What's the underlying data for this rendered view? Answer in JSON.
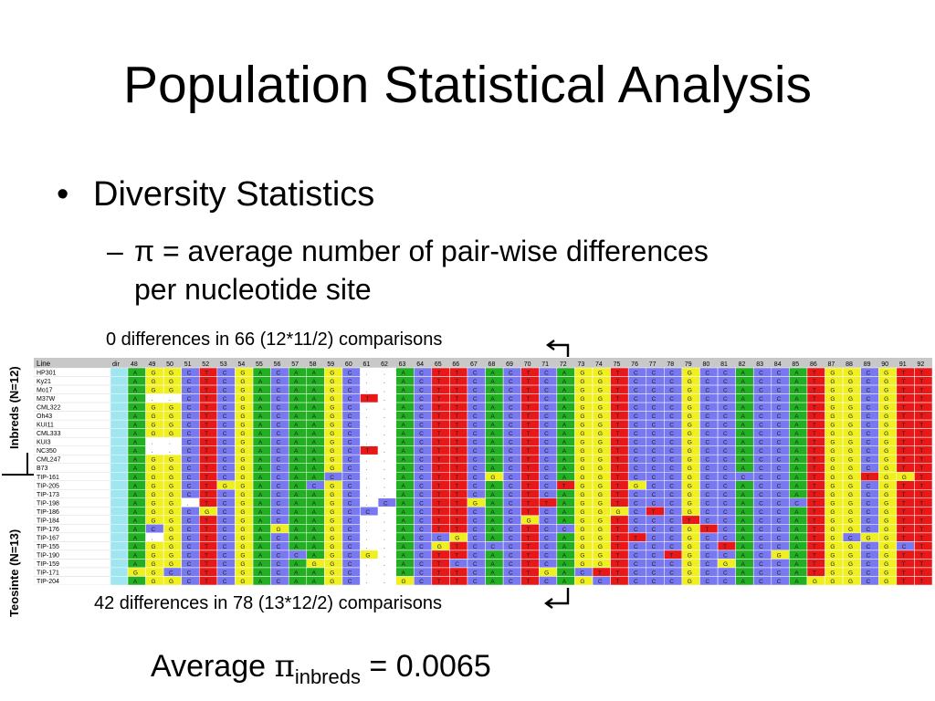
{
  "title": "Population Statistical Analysis",
  "bullets": {
    "level1": {
      "marker": "•",
      "text": "Diversity Statistics"
    },
    "level2": {
      "marker": "–",
      "line1": "π = average number of pair-wise differences",
      "line2": "per nucleotide site"
    }
  },
  "annotations": {
    "top": "0 differences in 66 (12*11/2) comparisons",
    "bottom": "42 differences in 78 (13*12/2) comparisons"
  },
  "group_labels": {
    "inbreds": "Inbreds (N=12)",
    "teosinte": "Teosinte (N=13)"
  },
  "result": {
    "prefix": "Average ",
    "symbol": "π",
    "subscript": "inbreds",
    "equals": " = 0.0065"
  },
  "alignment": {
    "header_line": "Line",
    "header_dir": "dir",
    "positions": [
      "48",
      "49",
      "50",
      "51",
      "52",
      "53",
      "54",
      "55",
      "56",
      "57",
      "58",
      "59",
      "60",
      "61",
      "62",
      "63",
      "64",
      "65",
      "66",
      "67",
      "68",
      "69",
      "70",
      "71",
      "72",
      "73",
      "74",
      "75",
      "76",
      "77",
      "78",
      "79",
      "80",
      "81",
      "82",
      "83",
      "84",
      "85",
      "86",
      "87",
      "88",
      "89",
      "90",
      "91",
      "92"
    ],
    "inbred_lines": [
      "HP301",
      "Ky21",
      "Mo17",
      "M37W",
      "CML322",
      "Oh43",
      "KUI11",
      "CML333",
      "KUI3",
      "NC350",
      "CML247",
      "B73"
    ],
    "teosinte_lines": [
      "TIP-161",
      "TIP-205",
      "TIP-173",
      "TIP-198",
      "TIP-186",
      "TIP-184",
      "TIP-176",
      "TIP-167",
      "TIP-155",
      "TIP-190",
      "TIP-159",
      "TIP-171",
      "TIP-204"
    ],
    "colors": {
      "A": "#22b022",
      "C": "#7878f0",
      "G": "#f0f020",
      "T": "#e81818",
      "gap": "#ffffff",
      "header": "#c8c8c8"
    }
  }
}
